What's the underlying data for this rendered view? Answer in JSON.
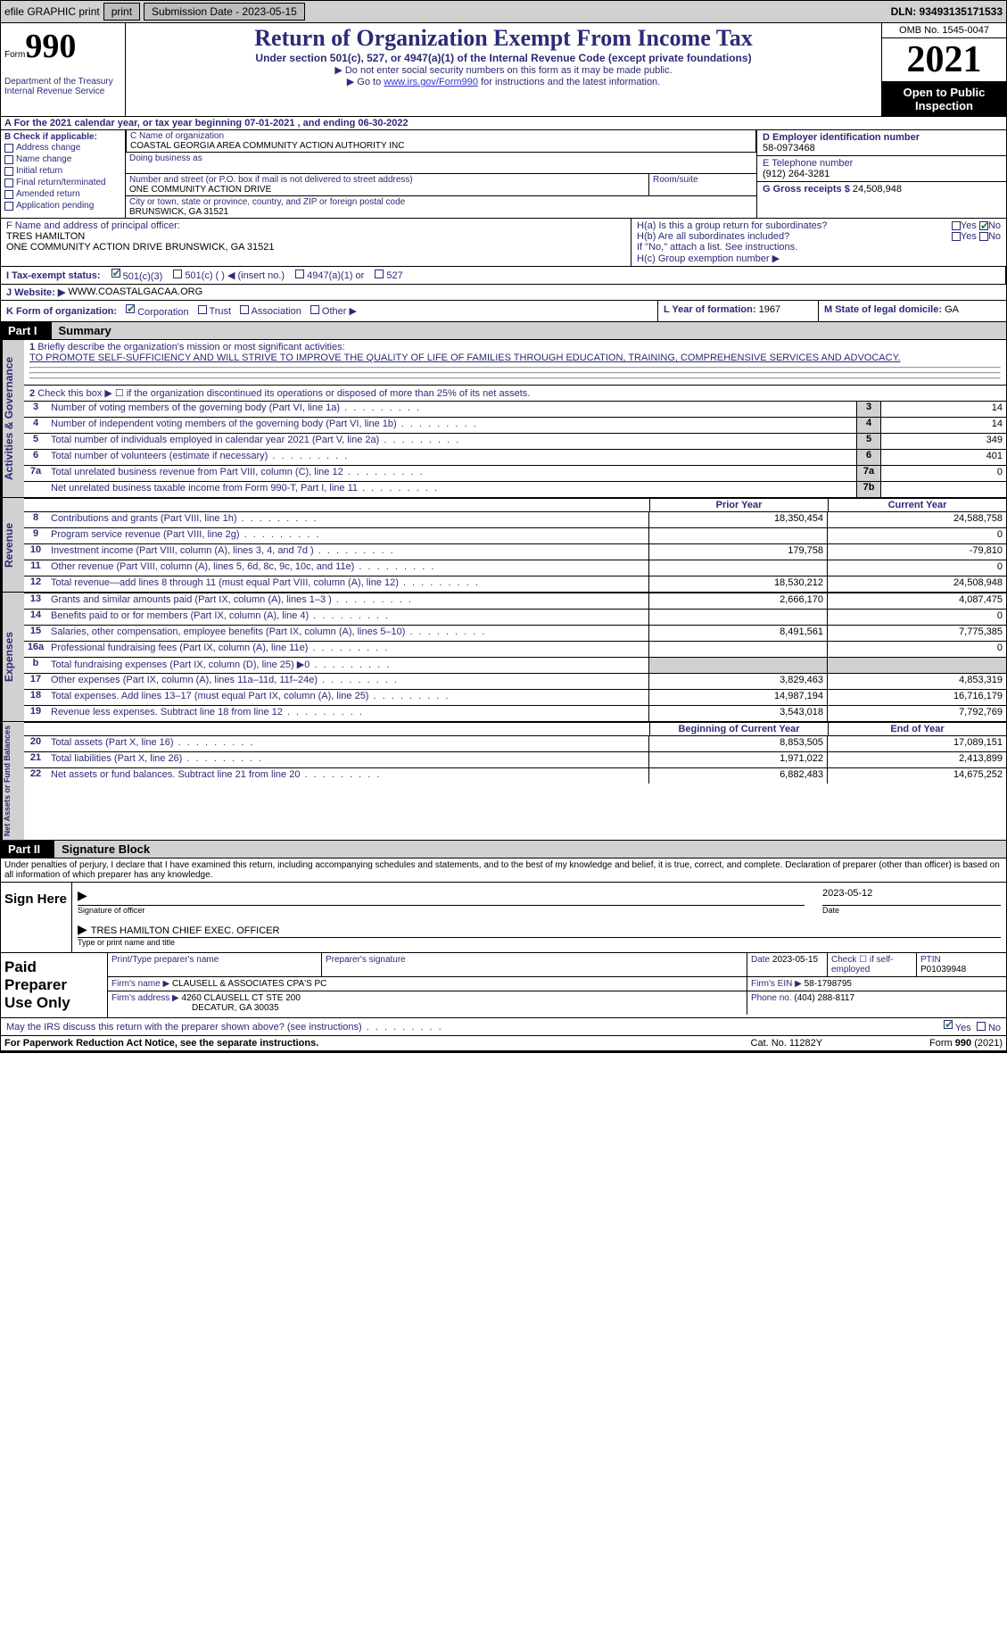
{
  "top": {
    "efile": "efile GRAPHIC print",
    "submission": "Submission Date - 2023-05-15",
    "dln": "DLN: 93493135171533"
  },
  "header": {
    "form_label": "Form",
    "form_num": "990",
    "title": "Return of Organization Exempt From Income Tax",
    "sub1": "Under section 501(c), 527, or 4947(a)(1) of the Internal Revenue Code (except private foundations)",
    "sub2": "▶ Do not enter social security numbers on this form as it may be made public.",
    "sub3_pre": "▶ Go to ",
    "sub3_link": "www.irs.gov/Form990",
    "sub3_post": " for instructions and the latest information.",
    "dept": "Department of the Treasury Internal Revenue Service",
    "omb": "OMB No. 1545-0047",
    "year": "2021",
    "open": "Open to Public Inspection"
  },
  "fiscal": "A For the 2021 calendar year, or tax year beginning 07-01-2021   , and ending 06-30-2022",
  "box_b": {
    "label": "B Check if applicable:",
    "items": [
      "Address change",
      "Name change",
      "Initial return",
      "Final return/terminated",
      "Amended return",
      "Application pending"
    ]
  },
  "box_c": {
    "name_lbl": "C Name of organization",
    "name": "COASTAL GEORGIA AREA COMMUNITY ACTION AUTHORITY INC",
    "dba_lbl": "Doing business as",
    "addr_lbl": "Number and street (or P.O. box if mail is not delivered to street address)",
    "room_lbl": "Room/suite",
    "addr": "ONE COMMUNITY ACTION DRIVE",
    "city_lbl": "City or town, state or province, country, and ZIP or foreign postal code",
    "city": "BRUNSWICK, GA  31521"
  },
  "box_d": {
    "lbl": "D Employer identification number",
    "val": "58-0973468"
  },
  "box_e": {
    "lbl": "E Telephone number",
    "val": "(912) 264-3281"
  },
  "box_g": {
    "lbl": "G Gross receipts $",
    "val": "24,508,948"
  },
  "box_f": {
    "lbl": "F  Name and address of principal officer:",
    "name": "TRES HAMILTON",
    "addr": "ONE COMMUNITY ACTION DRIVE BRUNSWICK, GA  31521"
  },
  "box_h": {
    "a": "H(a)  Is this a group return for subordinates?",
    "b": "H(b)  Are all subordinates included?",
    "note": "If \"No,\" attach a list. See instructions.",
    "c": "H(c)  Group exemption number ▶",
    "yes": "Yes",
    "no": "No"
  },
  "box_i": {
    "lbl": "I  Tax-exempt status:",
    "o1": "501(c)(3)",
    "o2": "501(c) (  ) ◀ (insert no.)",
    "o3": "4947(a)(1) or",
    "o4": "527"
  },
  "box_j": {
    "lbl": "J  Website: ▶",
    "val": "WWW.COASTALGACAA.ORG"
  },
  "box_k": {
    "lbl": "K Form of organization:",
    "o1": "Corporation",
    "o2": "Trust",
    "o3": "Association",
    "o4": "Other ▶"
  },
  "box_l": {
    "lbl": "L Year of formation:",
    "val": "1967"
  },
  "box_m": {
    "lbl": "M State of legal domicile:",
    "val": "GA"
  },
  "part1": {
    "label": "Part I",
    "title": "Summary"
  },
  "summary": {
    "q1_lbl": "Briefly describe the organization's mission or most significant activities:",
    "q1_val": "TO PROMOTE SELF-SUFFICIENCY AND WILL STRIVE TO IMPROVE THE QUALITY OF LIFE OF FAMILIES THROUGH EDUCATION, TRAINING, COMPREHENSIVE SERVICES AND ADVOCACY.",
    "q2": "Check this box ▶ ☐  if the organization discontinued its operations or disposed of more than 25% of its net assets.",
    "rows": [
      {
        "n": "3",
        "d": "Number of voting members of the governing body (Part VI, line 1a)",
        "c": "3",
        "v": "14"
      },
      {
        "n": "4",
        "d": "Number of independent voting members of the governing body (Part VI, line 1b)",
        "c": "4",
        "v": "14"
      },
      {
        "n": "5",
        "d": "Total number of individuals employed in calendar year 2021 (Part V, line 2a)",
        "c": "5",
        "v": "349"
      },
      {
        "n": "6",
        "d": "Total number of volunteers (estimate if necessary)",
        "c": "6",
        "v": "401"
      },
      {
        "n": "7a",
        "d": "Total unrelated business revenue from Part VIII, column (C), line 12",
        "c": "7a",
        "v": "0"
      },
      {
        "n": "",
        "d": "Net unrelated business taxable income from Form 990-T, Part I, line 11",
        "c": "7b",
        "v": ""
      }
    ]
  },
  "revenue": {
    "head_prior": "Prior Year",
    "head_curr": "Current Year",
    "rows": [
      {
        "n": "8",
        "d": "Contributions and grants (Part VIII, line 1h)",
        "p": "18,350,454",
        "c": "24,588,758"
      },
      {
        "n": "9",
        "d": "Program service revenue (Part VIII, line 2g)",
        "p": "",
        "c": "0"
      },
      {
        "n": "10",
        "d": "Investment income (Part VIII, column (A), lines 3, 4, and 7d )",
        "p": "179,758",
        "c": "-79,810"
      },
      {
        "n": "11",
        "d": "Other revenue (Part VIII, column (A), lines 5, 6d, 8c, 9c, 10c, and 11e)",
        "p": "",
        "c": "0"
      },
      {
        "n": "12",
        "d": "Total revenue—add lines 8 through 11 (must equal Part VIII, column (A), line 12)",
        "p": "18,530,212",
        "c": "24,508,948"
      }
    ]
  },
  "expenses": {
    "rows": [
      {
        "n": "13",
        "d": "Grants and similar amounts paid (Part IX, column (A), lines 1–3 )",
        "p": "2,666,170",
        "c": "4,087,475"
      },
      {
        "n": "14",
        "d": "Benefits paid to or for members (Part IX, column (A), line 4)",
        "p": "",
        "c": "0"
      },
      {
        "n": "15",
        "d": "Salaries, other compensation, employee benefits (Part IX, column (A), lines 5–10)",
        "p": "8,491,561",
        "c": "7,775,385"
      },
      {
        "n": "16a",
        "d": "Professional fundraising fees (Part IX, column (A), line 11e)",
        "p": "",
        "c": "0"
      },
      {
        "n": "b",
        "d": "Total fundraising expenses (Part IX, column (D), line 25) ▶0",
        "p": "",
        "c": "",
        "shade": true
      },
      {
        "n": "17",
        "d": "Other expenses (Part IX, column (A), lines 11a–11d, 11f–24e)",
        "p": "3,829,463",
        "c": "4,853,319"
      },
      {
        "n": "18",
        "d": "Total expenses. Add lines 13–17 (must equal Part IX, column (A), line 25)",
        "p": "14,987,194",
        "c": "16,716,179"
      },
      {
        "n": "19",
        "d": "Revenue less expenses. Subtract line 18 from line 12",
        "p": "3,543,018",
        "c": "7,792,769"
      }
    ]
  },
  "netassets": {
    "head_begin": "Beginning of Current Year",
    "head_end": "End of Year",
    "rows": [
      {
        "n": "20",
        "d": "Total assets (Part X, line 16)",
        "p": "8,853,505",
        "c": "17,089,151"
      },
      {
        "n": "21",
        "d": "Total liabilities (Part X, line 26)",
        "p": "1,971,022",
        "c": "2,413,899"
      },
      {
        "n": "22",
        "d": "Net assets or fund balances. Subtract line 21 from line 20",
        "p": "6,882,483",
        "c": "14,675,252"
      }
    ]
  },
  "side_labels": {
    "act": "Activities & Governance",
    "rev": "Revenue",
    "exp": "Expenses",
    "net": "Net Assets or Fund Balances"
  },
  "part2": {
    "label": "Part II",
    "title": "Signature Block"
  },
  "penalty": "Under penalties of perjury, I declare that I have examined this return, including accompanying schedules and statements, and to the best of my knowledge and belief, it is true, correct, and complete. Declaration of preparer (other than officer) is based on all information of which preparer has any knowledge.",
  "sign": {
    "left": "Sign Here",
    "sig_lbl": "Signature of officer",
    "date": "2023-05-12",
    "date_lbl": "Date",
    "name": "TRES HAMILTON  CHIEF EXEC. OFFICER",
    "name_lbl": "Type or print name and title"
  },
  "prep": {
    "left1": "Paid",
    "left2": "Preparer",
    "left3": "Use Only",
    "r1_c1": "Print/Type preparer's name",
    "r1_c2": "Preparer's signature",
    "r1_c3_lbl": "Date",
    "r1_c3": "2023-05-15",
    "r1_c4": "Check ☐ if self-employed",
    "r1_c5_lbl": "PTIN",
    "r1_c5": "P01039948",
    "r2_lbl": "Firm's name    ▶",
    "r2_val": "CLAUSELL & ASSOCIATES CPA'S PC",
    "r2_ein_lbl": "Firm's EIN ▶",
    "r2_ein": "58-1798795",
    "r3_lbl": "Firm's address ▶",
    "r3_val1": "4260 CLAUSELL CT STE 200",
    "r3_val2": "DECATUR, GA  30035",
    "r3_ph_lbl": "Phone no.",
    "r3_ph": "(404) 288-8117"
  },
  "discuss": {
    "text": "May the IRS discuss this return with the preparer shown above? (see instructions)",
    "yes": "Yes",
    "no": "No"
  },
  "footer": {
    "left": "For Paperwork Reduction Act Notice, see the separate instructions.",
    "mid": "Cat. No. 11282Y",
    "right": "Form 990 (2021)"
  }
}
